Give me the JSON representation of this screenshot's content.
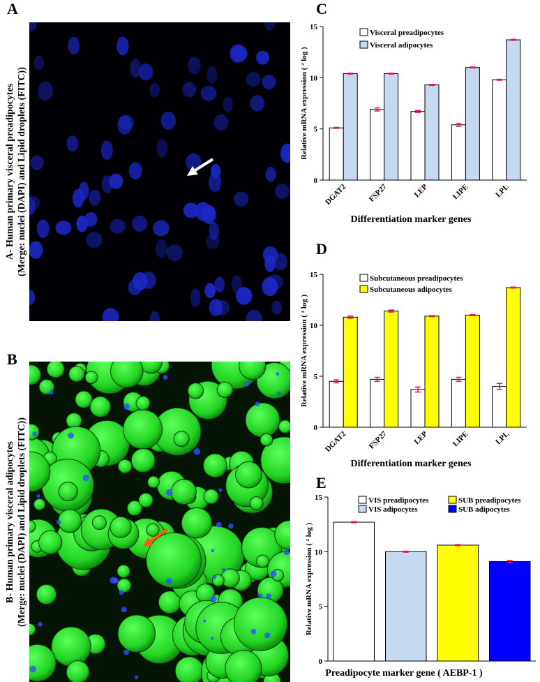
{
  "panels": [
    {
      "label": "A",
      "caption": "A- Human primary visceral preadipocytes",
      "caption2": "(Merge: nuclei (DAPI) and Lipid droplets (FITC))"
    },
    {
      "label": "B",
      "caption": "B- Human primary visceral adipocytes",
      "caption2": "(Merge: nuclei (DAPI) and Lipid droplets (FITC))"
    }
  ],
  "chart_data": [
    {
      "type": "bar",
      "label": "C",
      "y_label": "Relative mRNA expression ( ² log )",
      "x_label": "Differentiation marker genes",
      "categories": [
        "DGAT2",
        "FSP27",
        "LEP",
        "LIPE",
        "LPL"
      ],
      "series": [
        {
          "name": "Visceral preadipocytes",
          "color": "#ffffff",
          "values": [
            5.1,
            6.9,
            6.7,
            5.4,
            9.8
          ],
          "errors": [
            0.05,
            0.15,
            0.1,
            0.15,
            0.05
          ]
        },
        {
          "name": "Visceral adipocytes",
          "color": "#c6d9f1",
          "values": [
            10.4,
            10.4,
            9.3,
            11.0,
            13.7
          ],
          "errors": [
            0.05,
            0.05,
            0.05,
            0.05,
            0.05
          ]
        }
      ],
      "ylim": [
        0,
        15
      ],
      "yticks": [
        0,
        5,
        10,
        15
      ]
    },
    {
      "type": "bar",
      "label": "D",
      "y_label": "Relative mRNA expression ( ² log )",
      "x_label": "Differentiation marker genes",
      "categories": [
        "DGAT2",
        "FSP27",
        "LEP",
        "LIPE",
        "LPL"
      ],
      "series": [
        {
          "name": "Subcutaneous preadipocytes",
          "color": "#ffffff",
          "values": [
            4.5,
            4.7,
            3.7,
            4.7,
            4.0
          ],
          "errors": [
            0.15,
            0.2,
            0.25,
            0.2,
            0.3
          ]
        },
        {
          "name": "Subcutaneous adipocytes",
          "color": "#ffff00",
          "values": [
            10.8,
            11.4,
            10.9,
            11.0,
            13.7
          ],
          "errors": [
            0.1,
            0.1,
            0.05,
            0.05,
            0.05
          ]
        }
      ],
      "ylim": [
        0,
        15
      ],
      "yticks": [
        0,
        5,
        10,
        15
      ]
    },
    {
      "type": "bar",
      "label": "E",
      "y_label": "Relative mRNA expression ( ² log )",
      "x_label": "Preadipocyte marker gene ( AEBP-1 )",
      "series": [
        {
          "name": "VIS preadipocytes",
          "color": "#ffffff",
          "values": [
            12.7
          ],
          "errors": [
            0.05
          ]
        },
        {
          "name": "VIS adipocytes",
          "color": "#c6d9f1",
          "values": [
            10.0
          ],
          "errors": [
            0.05
          ]
        },
        {
          "name": "SUB preadipocytes",
          "color": "#ffff00",
          "values": [
            10.6
          ],
          "errors": [
            0.05
          ]
        },
        {
          "name": "SUB adipocytes",
          "color": "#0000ff",
          "values": [
            9.1
          ],
          "errors": [
            0.1
          ]
        }
      ],
      "ylim": [
        0,
        15
      ],
      "yticks": [
        0,
        5,
        10,
        15
      ]
    }
  ]
}
